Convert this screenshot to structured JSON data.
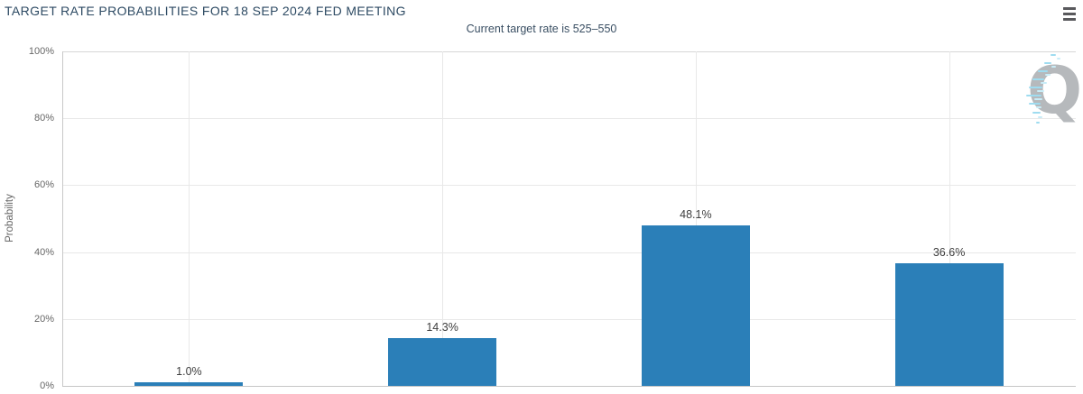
{
  "header": {
    "title": "TARGET RATE PROBABILITIES FOR 18 SEP 2024 FED MEETING",
    "menu_icon": "hamburger-icon"
  },
  "chart": {
    "subtitle": "Current target rate is 525–550",
    "ylabel": "Probability",
    "watermark_letter": "Q"
  },
  "chart_data": {
    "type": "bar",
    "title": "TARGET RATE PROBABILITIES FOR 18 SEP 2024 FED MEETING",
    "subtitle": "Current target rate is 525–550",
    "values": [
      1.0,
      14.3,
      48.1,
      36.6
    ],
    "value_labels": [
      "1.0%",
      "14.3%",
      "48.1%",
      "36.6%"
    ],
    "x_axis_labels_visible": false,
    "ylabel": "Probability",
    "ylim": [
      0,
      100
    ],
    "yticks": [
      "0%",
      "20%",
      "40%",
      "60%",
      "80%",
      "100%"
    ],
    "grid": true,
    "legend": false,
    "bar_color": "#2b7fb8"
  },
  "colors": {
    "bar": "#2b7fb8",
    "title_text": "#2d4a63",
    "axis_text": "#666666",
    "grid_line": "#e8e8e8",
    "axis_line": "#c6c6c6",
    "watermark_gray": "#b6b9bc",
    "watermark_blue_1": "#9fdcf0",
    "watermark_blue_2": "#c9ecf7"
  }
}
